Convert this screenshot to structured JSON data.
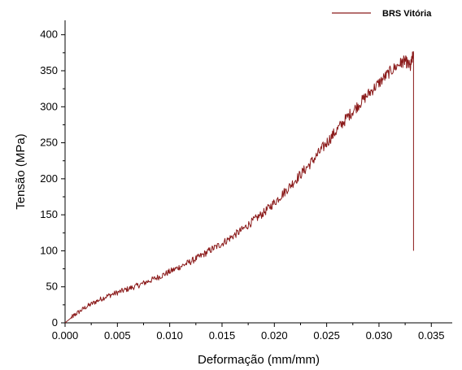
{
  "chart_data": {
    "type": "line",
    "xlabel": "Deformação (mm/mm)",
    "ylabel": "Tensão (MPa)",
    "xlim": [
      0,
      0.037
    ],
    "ylim": [
      0,
      420
    ],
    "xticks": [
      0.0,
      0.005,
      0.01,
      0.015,
      0.02,
      0.025,
      0.03,
      0.035
    ],
    "xtick_labels": [
      "0.000",
      "0.005",
      "0.010",
      "0.015",
      "0.020",
      "0.025",
      "0.030",
      "0.035"
    ],
    "yticks": [
      0,
      50,
      100,
      150,
      200,
      250,
      300,
      350,
      400
    ],
    "ytick_labels": [
      "0",
      "50",
      "100",
      "150",
      "200",
      "250",
      "300",
      "350",
      "400"
    ],
    "legend_position": "top-right",
    "grid": false,
    "series": [
      {
        "name": "BRS Vitória",
        "color": "#8b1a1a",
        "x": [
          0.0,
          0.0005,
          0.001,
          0.002,
          0.003,
          0.004,
          0.005,
          0.006,
          0.007,
          0.008,
          0.009,
          0.01,
          0.011,
          0.012,
          0.013,
          0.014,
          0.015,
          0.016,
          0.017,
          0.018,
          0.019,
          0.02,
          0.021,
          0.022,
          0.023,
          0.024,
          0.025,
          0.026,
          0.027,
          0.028,
          0.029,
          0.03,
          0.031,
          0.032,
          0.0325,
          0.033,
          0.0333,
          0.0333,
          0.0333,
          0.0333
        ],
        "y": [
          0,
          6,
          12,
          22,
          30,
          37,
          42,
          47,
          52,
          58,
          64,
          71,
          78,
          85,
          93,
          102,
          110,
          120,
          130,
          142,
          153,
          167,
          182,
          198,
          214,
          231,
          250,
          268,
          286,
          302,
          318,
          333,
          348,
          360,
          364,
          355,
          375,
          180,
          120,
          100
        ]
      }
    ]
  }
}
